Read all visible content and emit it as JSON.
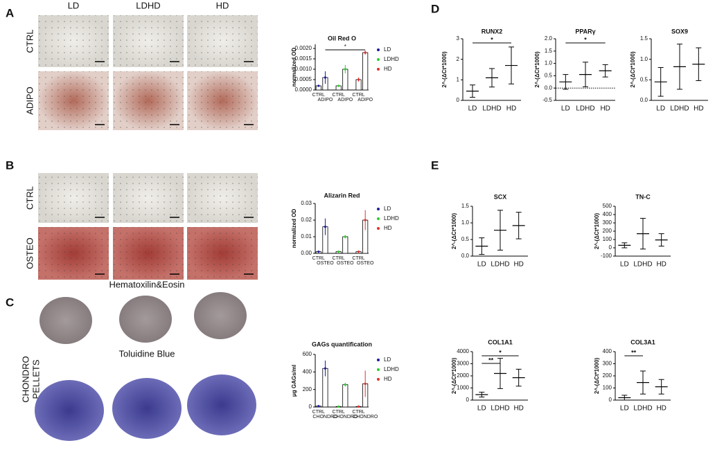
{
  "figure": {
    "panels": [
      "A",
      "B",
      "C",
      "D",
      "E"
    ],
    "image_columns": [
      "LD",
      "LDHD",
      "HD"
    ],
    "rows_a": [
      "CTRL",
      "ADIPO"
    ],
    "rows_b": [
      "CTRL",
      "OSTEO"
    ],
    "pellets": {
      "label": [
        "CHONDRO",
        "PELLETS"
      ],
      "stains": [
        "Hematoxilin&Eosin",
        "Toluidine Blue"
      ]
    }
  },
  "chart_data": [
    {
      "type": "bar",
      "title": "Oil Red O",
      "ylabel": "normalized OD",
      "categories": [
        "CTRL",
        "ADIPO"
      ],
      "series": [
        {
          "name": "LD",
          "color": "#1c1c9c",
          "values": [
            0.0002,
            0.0006
          ],
          "errors": [
            5e-05,
            0.0003
          ]
        },
        {
          "name": "LDHD",
          "color": "#2ecc2e",
          "values": [
            0.0002,
            0.001
          ],
          "errors": [
            5e-05,
            0.0002
          ]
        },
        {
          "name": "HD",
          "color": "#e03030",
          "values": [
            0.0005,
            0.0018
          ],
          "errors": [
            0.0001,
            0.0001
          ]
        }
      ],
      "ylim": [
        0,
        0.0022
      ],
      "yticks": [
        {
          "value": 0,
          "label": "0.0000"
        },
        {
          "value": 0.0005,
          "label": "0.0005"
        },
        {
          "value": 0.001,
          "label": "0.0010"
        },
        {
          "value": 0.0015,
          "label": "0.0015"
        },
        {
          "value": 0.002,
          "label": "0.0020"
        }
      ],
      "annotations": [
        {
          "text": "*",
          "from": 1,
          "to": 5
        }
      ],
      "legend": "right"
    },
    {
      "type": "bar",
      "title": "Alizarin Red",
      "ylabel": "normalized OD",
      "categories": [
        "CTRL",
        "OSTEO"
      ],
      "series": [
        {
          "name": "LD",
          "color": "#1c1c9c",
          "values": [
            0.001,
            0.016
          ],
          "errors": [
            0.0003,
            0.005
          ]
        },
        {
          "name": "LDHD",
          "color": "#2ecc2e",
          "values": [
            0.001,
            0.01
          ],
          "errors": [
            0.0003,
            0.001
          ]
        },
        {
          "name": "HD",
          "color": "#e03030",
          "values": [
            0.001,
            0.02
          ],
          "errors": [
            0.0003,
            0.006
          ]
        }
      ],
      "ylim": [
        0,
        0.03
      ],
      "yticks": [
        {
          "value": 0,
          "label": "0.00"
        },
        {
          "value": 0.01,
          "label": "0.01"
        },
        {
          "value": 0.02,
          "label": "0.02"
        },
        {
          "value": 0.03,
          "label": "0.03"
        }
      ],
      "annotations": [],
      "legend": "right"
    },
    {
      "type": "bar",
      "title": "GAGs quantification",
      "ylabel": "μg GAGs/ml",
      "categories": [
        "CTRL",
        "CHONDRO"
      ],
      "series": [
        {
          "name": "LD",
          "color": "#1c1c9c",
          "values": [
            10,
            440
          ],
          "errors": [
            5,
            90
          ]
        },
        {
          "name": "LDHD",
          "color": "#2ecc2e",
          "values": [
            5,
            255
          ],
          "errors": [
            3,
            20
          ]
        },
        {
          "name": "HD",
          "color": "#e03030",
          "values": [
            5,
            265
          ],
          "errors": [
            3,
            150
          ]
        }
      ],
      "ylim": [
        0,
        600
      ],
      "yticks": [
        0,
        200,
        400,
        600
      ],
      "annotations": [],
      "legend": "right"
    },
    {
      "type": "dot",
      "title": "RUNX2",
      "ylabel": "2^-(ΔCt*1000)",
      "categories": [
        "LD",
        "LDHD",
        "HD"
      ],
      "values": [
        0.45,
        1.1,
        1.7
      ],
      "errors": [
        0.3,
        0.45,
        0.9
      ],
      "ylim": [
        0,
        3
      ],
      "yticks": [
        0,
        1,
        2,
        3
      ],
      "annotations": [
        {
          "text": "*",
          "from": 0,
          "to": 2
        }
      ]
    },
    {
      "type": "dot",
      "title": "PPARγ",
      "ylabel": "2^-(ΔCt*1000)",
      "categories": [
        "LD",
        "LDHD",
        "HD"
      ],
      "values": [
        0.25,
        0.55,
        0.7
      ],
      "errors": [
        0.3,
        0.5,
        0.25
      ],
      "ylim": [
        -0.5,
        2
      ],
      "yticks": [
        -0.5,
        {
          "value": 0,
          "label": "0.0"
        },
        0.5,
        {
          "value": 1,
          "label": "1.0"
        },
        1.5,
        {
          "value": 2,
          "label": "2.0"
        }
      ],
      "zero_line": true,
      "annotations": [
        {
          "text": "*",
          "from": 0,
          "to": 2
        }
      ]
    },
    {
      "type": "dot",
      "title": "SOX9",
      "ylabel": "2^-(ΔCt*1000)",
      "categories": [
        "LD",
        "LDHD",
        "HD"
      ],
      "values": [
        0.45,
        0.82,
        0.88
      ],
      "errors": [
        0.35,
        0.55,
        0.4
      ],
      "ylim": [
        0,
        1.5
      ],
      "yticks": [
        {
          "value": 0,
          "label": "0.0"
        },
        0.5,
        {
          "value": 1,
          "label": "1.0"
        },
        1.5
      ],
      "annotations": []
    },
    {
      "type": "dot",
      "title": "SCX",
      "ylabel": "2^-(ΔCt*1000)",
      "categories": [
        "LD",
        "LDHD",
        "HD"
      ],
      "values": [
        0.3,
        0.78,
        0.92
      ],
      "errors": [
        0.25,
        0.6,
        0.4
      ],
      "ylim": [
        0,
        1.5
      ],
      "yticks": [
        {
          "value": 0,
          "label": "0.0"
        },
        0.5,
        {
          "value": 1,
          "label": "1.0"
        },
        1.5
      ],
      "annotations": []
    },
    {
      "type": "dot",
      "title": "TN-C",
      "ylabel": "2^-(ΔCt*1000)",
      "categories": [
        "LD",
        "LDHD",
        "HD"
      ],
      "values": [
        30,
        170,
        95
      ],
      "errors": [
        30,
        185,
        75
      ],
      "ylim": [
        -100,
        500
      ],
      "yticks": [
        -100,
        0,
        100,
        200,
        300,
        400,
        500
      ],
      "annotations": []
    },
    {
      "type": "dot",
      "title": "COL1A1",
      "ylabel": "2^-(ΔCt*1000)",
      "categories": [
        "LD",
        "LDHD",
        "HD"
      ],
      "values": [
        450,
        2200,
        1850
      ],
      "errors": [
        200,
        1250,
        700
      ],
      "ylim": [
        0,
        4000
      ],
      "yticks": [
        0,
        1000,
        2000,
        3000,
        4000
      ],
      "annotations": [
        {
          "text": "**",
          "from": 0,
          "to": 1
        },
        {
          "text": "*",
          "from": 0,
          "to": 2
        }
      ]
    },
    {
      "type": "dot",
      "title": "COL3A1",
      "ylabel": "2^-(ΔCt*1000)",
      "categories": [
        "LD",
        "LDHD",
        "HD"
      ],
      "values": [
        20,
        145,
        110
      ],
      "errors": [
        20,
        95,
        60
      ],
      "ylim": [
        0,
        400
      ],
      "yticks": [
        0,
        100,
        200,
        300,
        400
      ],
      "annotations": [
        {
          "text": "**",
          "from": 0,
          "to": 1
        }
      ]
    }
  ]
}
